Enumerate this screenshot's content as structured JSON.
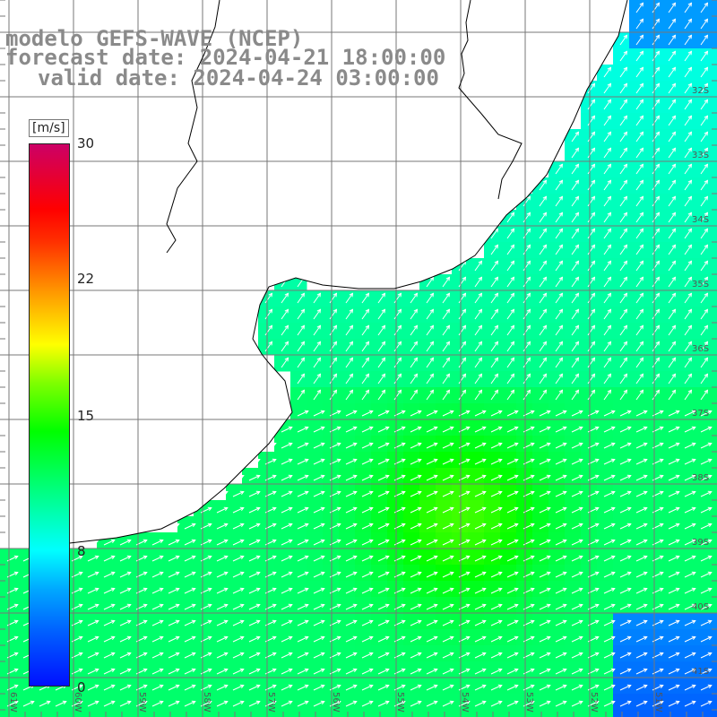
{
  "titles": {
    "model": "modelo GEFS-WAVE (NCEP)",
    "forecast": "forecast date: 2024-04-21 18:00:00",
    "valid": "valid date: 2024-04-24 03:00:00"
  },
  "colorbar": {
    "unit": "[m/s]",
    "ticks": [
      "30",
      "22",
      "15",
      "8",
      "0"
    ],
    "range": [
      0,
      30
    ],
    "colors": [
      "#0010ff",
      "#00aaff",
      "#00ffff",
      "#00ff00",
      "#ffff00",
      "#ff0000",
      "#cc0066"
    ]
  },
  "map": {
    "lon_labels": [
      "61W",
      "60W",
      "59W",
      "58W",
      "57W",
      "56W",
      "55W",
      "54W",
      "53W",
      "52W",
      "51W"
    ],
    "lat_labels": [
      "32S",
      "33S",
      "34S",
      "35S",
      "36S",
      "37S",
      "38S",
      "39S",
      "40S",
      "41S"
    ],
    "variable": "wind speed and direction",
    "land_color": "#ffffff",
    "coastline_color": "#000000",
    "grid_color": "#777777",
    "arrow_color": "#ffffff"
  }
}
